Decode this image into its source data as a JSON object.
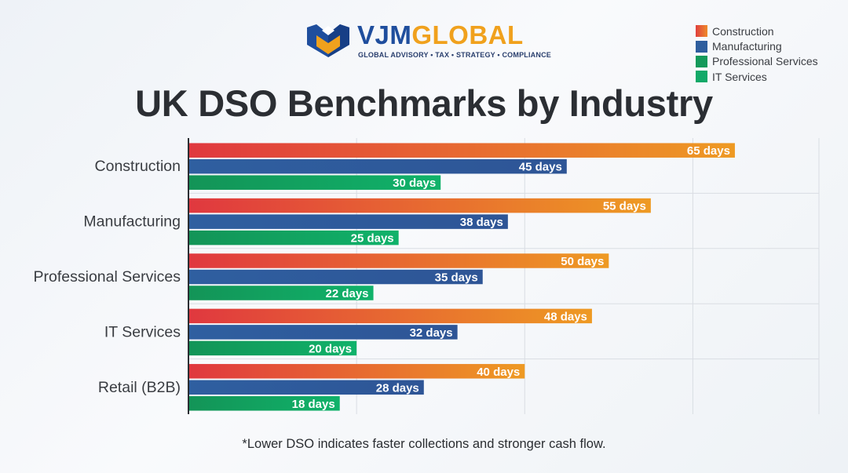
{
  "logo": {
    "brand_part1": "VJM",
    "brand_part2": "GLOBAL",
    "tagline": "GLOBAL ADVISORY • TAX • STRATEGY • COMPLIANCE"
  },
  "title": "UK DSO Benchmarks by Industry",
  "footnote": "*Lower DSO indicates faster collections and stronger cash flow.",
  "legend": [
    {
      "label": "Construction",
      "color": "#e0403e",
      "color2": "#ee8a2a"
    },
    {
      "label": "Manufacturing",
      "color": "#2f5e9e"
    },
    {
      "label": "Professional Services",
      "color": "#159a5b"
    },
    {
      "label": "IT Services",
      "color": "#12a968"
    }
  ],
  "chart_data": {
    "type": "bar",
    "orientation": "horizontal",
    "categories": [
      "Construction",
      "Manufacturing",
      "Professional Services",
      "IT Services",
      "Retail (B2B)"
    ],
    "series": [
      {
        "values": [
          65,
          55,
          50,
          48,
          40
        ],
        "labels": [
          "65 days",
          "55 days",
          "50 days",
          "48 days",
          "40 days"
        ],
        "color": "#e8833a"
      },
      {
        "values": [
          45,
          38,
          35,
          32,
          28
        ],
        "labels": [
          "45 days",
          "38 days",
          "35 days",
          "32 days",
          "28 days"
        ],
        "color": "#2f5e9e"
      },
      {
        "values": [
          30,
          25,
          22,
          20,
          18
        ],
        "labels": [
          "30 days",
          "25 days",
          "22 days",
          "20 days",
          "18 days"
        ],
        "color": "#12a968"
      }
    ],
    "xlim": [
      0,
      75
    ],
    "grid": true
  }
}
